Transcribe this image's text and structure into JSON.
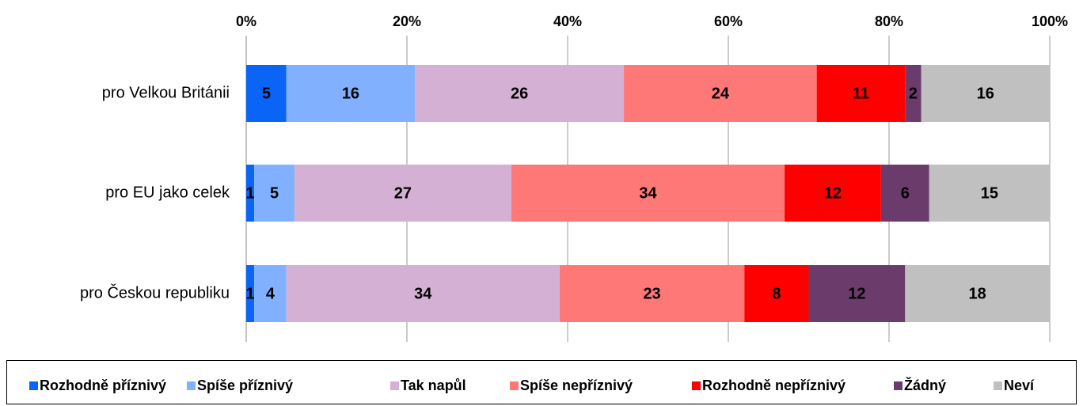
{
  "chart_data": {
    "type": "stacked-bar-horizontal",
    "categories": [
      "pro Velkou Británii",
      "pro EU jako celek",
      "pro Českou republiku"
    ],
    "series": [
      {
        "name": "Rozhodně příznivý",
        "color": "#0a64f5",
        "values": [
          5,
          1,
          1
        ]
      },
      {
        "name": "Spíše příznivý",
        "color": "#80b0ff",
        "values": [
          16,
          5,
          4
        ]
      },
      {
        "name": "Tak napůl",
        "color": "#d4b0d4",
        "values": [
          26,
          27,
          34
        ]
      },
      {
        "name": "Spíše nepříznivý",
        "color": "#ff7878",
        "values": [
          24,
          34,
          23
        ]
      },
      {
        "name": "Rozhodně nepříznivý",
        "color": "#ff0000",
        "values": [
          11,
          12,
          8
        ]
      },
      {
        "name": "Žádný",
        "color": "#6b3b6b",
        "values": [
          2,
          6,
          12
        ]
      },
      {
        "name": "Neví",
        "color": "#c0c0c0",
        "values": [
          16,
          15,
          18
        ]
      }
    ],
    "xlim": [
      0,
      100
    ],
    "xticks": [
      {
        "value": 0,
        "label": "0%"
      },
      {
        "value": 20,
        "label": "20%"
      },
      {
        "value": 40,
        "label": "40%"
      },
      {
        "value": 60,
        "label": "60%"
      },
      {
        "value": 80,
        "label": "80%"
      },
      {
        "value": 100,
        "label": "100%"
      }
    ],
    "grid": true,
    "legend": "bottom"
  }
}
